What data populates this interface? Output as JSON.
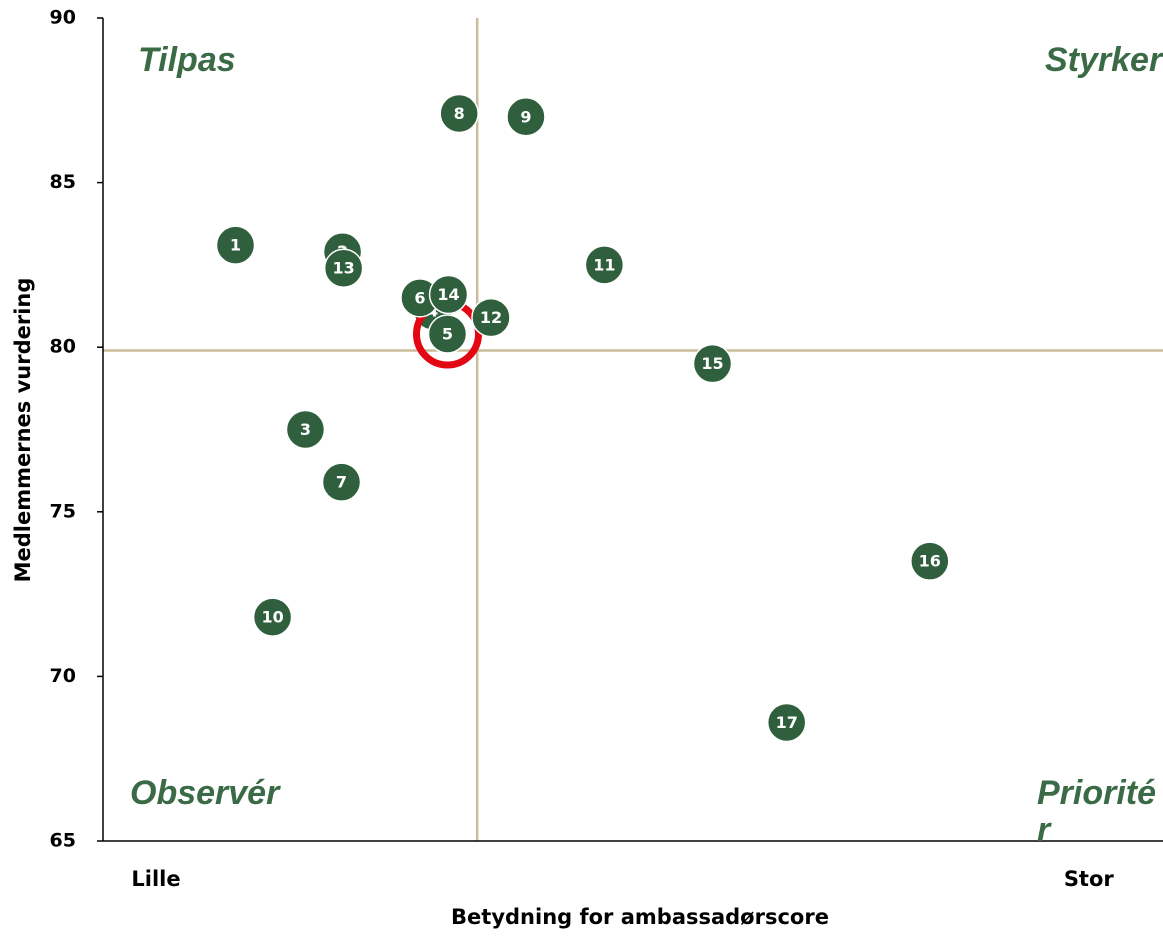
{
  "chart_data": {
    "type": "scatter",
    "x_label": "Betydning for ambassadørscore",
    "y_label": "Medlemmernes vurdering",
    "labels": [
      "1",
      "2",
      "3",
      "4",
      "5",
      "6",
      "7",
      "8",
      "9",
      "10",
      "11",
      "12",
      "13",
      "14",
      "15",
      "16",
      "17"
    ],
    "x": [
      12.5,
      22.6,
      19.1,
      31.1,
      32.5,
      29.9,
      22.5,
      33.6,
      39.9,
      16.0,
      47.3,
      36.6,
      22.7,
      32.6,
      57.5,
      78.0,
      64.5
    ],
    "values": [
      83.1,
      82.9,
      77.5,
      81.1,
      80.4,
      81.5,
      75.9,
      87.1,
      87.0,
      71.8,
      82.5,
      80.9,
      82.4,
      81.6,
      79.5,
      73.5,
      68.6
    ],
    "color": "#2f5f3c",
    "highlight": "5",
    "highlight_color": "#e30613",
    "xlim": [
      0,
      100
    ],
    "ylim": [
      65,
      90
    ],
    "xticks": [
      {
        "value": 5,
        "label": "Lille"
      },
      {
        "value": 93,
        "label": "Stor"
      }
    ],
    "yticks": [
      65,
      70,
      75,
      80,
      85,
      90
    ],
    "xline": 35.3,
    "yline": 79.9,
    "line_color": "#c9bd98",
    "annotations": {
      "top_left": "Tilpas",
      "top_right": "Styrker",
      "bottom_left": "Observér",
      "bottom_right": "Prioritér"
    },
    "annotation_color": "#3a6b46"
  }
}
